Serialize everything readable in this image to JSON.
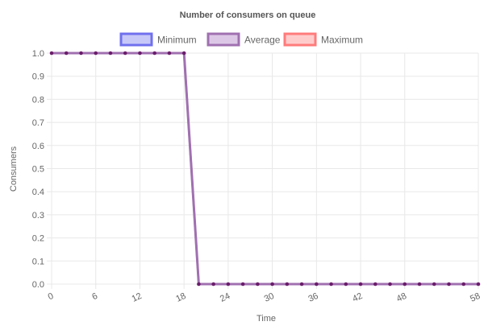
{
  "chart_data": {
    "type": "line",
    "title": "Number of consumers on queue",
    "xlabel": "Time",
    "ylabel": "Consumers",
    "legend_position": "top-center",
    "grid": true,
    "xlim": [
      0,
      58
    ],
    "ylim": [
      0,
      1
    ],
    "x_ticks": [
      "0",
      "6",
      "12",
      "18",
      "24",
      "30",
      "36",
      "42",
      "48",
      "58"
    ],
    "y_ticks": [
      "0.0",
      "0.1",
      "0.2",
      "0.3",
      "0.4",
      "0.5",
      "0.6",
      "0.7",
      "0.8",
      "0.9",
      "1.0"
    ],
    "x": [
      0,
      2,
      4,
      6,
      8,
      10,
      12,
      14,
      16,
      18,
      20,
      22,
      24,
      26,
      28,
      30,
      32,
      34,
      36,
      38,
      40,
      42,
      44,
      46,
      48,
      50,
      52,
      54,
      56,
      58
    ],
    "series": [
      {
        "name": "Minimum",
        "stroke": "#7070ee",
        "fill": "#c8c8f8",
        "values": [
          1,
          1,
          1,
          1,
          1,
          1,
          1,
          1,
          1,
          1,
          0,
          0,
          0,
          0,
          0,
          0,
          0,
          0,
          0,
          0,
          0,
          0,
          0,
          0,
          0,
          0,
          0,
          0,
          0,
          0
        ]
      },
      {
        "name": "Average",
        "stroke": "#a070b0",
        "fill": "#dcc8e6",
        "values": [
          1,
          1,
          1,
          1,
          1,
          1,
          1,
          1,
          1,
          1,
          0,
          0,
          0,
          0,
          0,
          0,
          0,
          0,
          0,
          0,
          0,
          0,
          0,
          0,
          0,
          0,
          0,
          0,
          0,
          0
        ]
      },
      {
        "name": "Maximum",
        "stroke": "#ff7b7b",
        "fill": "#ffcccc",
        "values": [
          1,
          1,
          1,
          1,
          1,
          1,
          1,
          1,
          1,
          1,
          0,
          0,
          0,
          0,
          0,
          0,
          0,
          0,
          0,
          0,
          0,
          0,
          0,
          0,
          0,
          0,
          0,
          0,
          0,
          0
        ]
      }
    ],
    "point_color": "#6b1d6b",
    "gridline_color": "#e8e8e8",
    "text_color": "#666666"
  }
}
